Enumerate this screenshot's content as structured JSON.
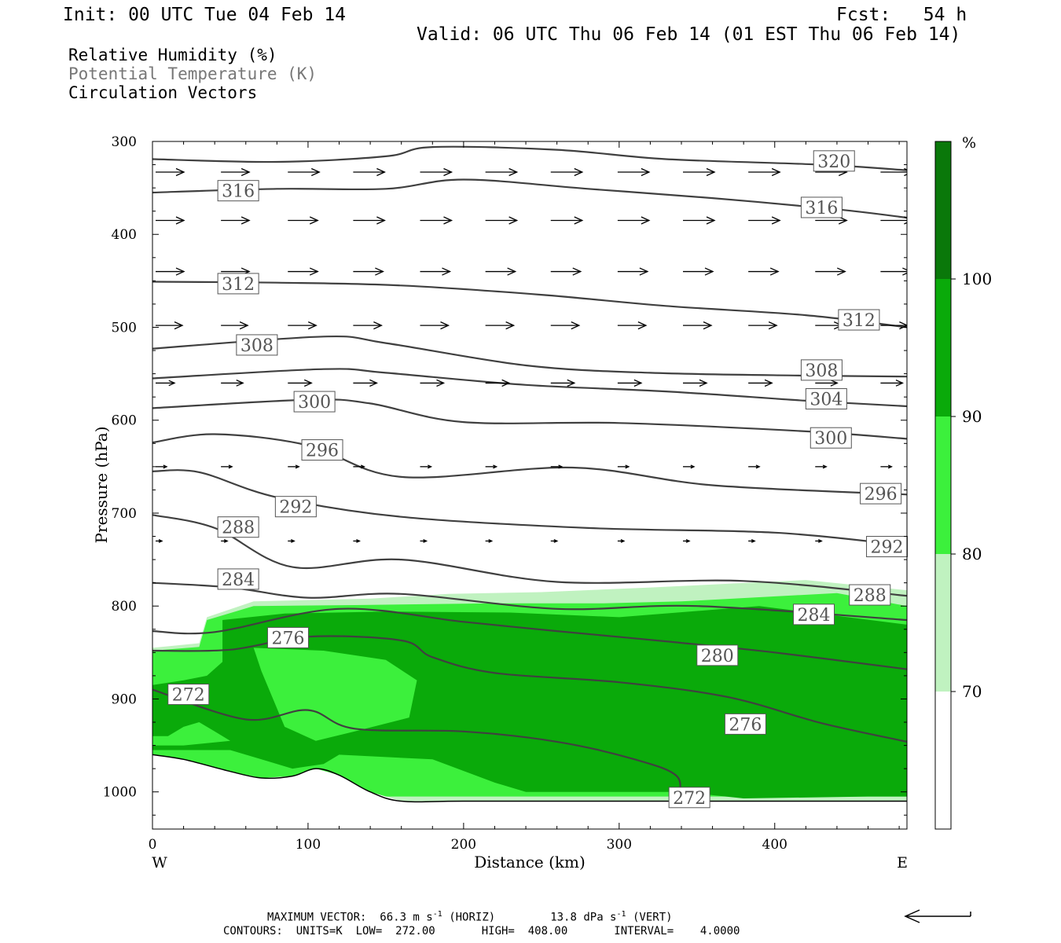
{
  "header": {
    "init": "Init: 00 UTC Tue 04 Feb 14",
    "fcst": "Fcst:   54 h",
    "valid": "Valid: 06 UTC Thu 06 Feb 14 (01 EST Thu 06 Feb 14)"
  },
  "fields": {
    "rh": "Relative Humidity (%)",
    "theta": "Potential Temperature (K)",
    "vectors": "Circulation Vectors"
  },
  "footer": {
    "max_vector_prefix": "MAXIMUM VECTOR:  66.3 m s",
    "max_vector_horiz": " (HORIZ)",
    "max_vector_vert_prefix": "13.8 dPa s",
    "max_vector_vert": " (VERT)",
    "superscript": "-1",
    "contours": "CONTOURS:  UNITS=K  LOW=  272.00       HIGH=  408.00       INTERVAL=    4.0000"
  },
  "colors": {
    "rh_70": "#c0f2c0",
    "rh_80": "#3cf03c",
    "rh_90": "#0aaa0a",
    "rh_100": "#0a780a",
    "contour": "#404040"
  },
  "chart_data": {
    "type": "cross-section",
    "xlabel": "Distance (km)",
    "ylabel": "Pressure (hPa)",
    "xlim": [
      0,
      485
    ],
    "ylim": [
      1040,
      300
    ],
    "x_ticks": [
      0,
      100,
      200,
      300,
      400
    ],
    "y_ticks": [
      300,
      400,
      500,
      600,
      700,
      800,
      900,
      1000
    ],
    "x_end_labels": {
      "left": "W",
      "right": "E"
    },
    "colorbar": {
      "unit": "%",
      "tick_labels": [
        "100",
        "90",
        "80",
        "70"
      ],
      "levels": [
        70,
        80,
        90,
        100
      ]
    },
    "theta_contours": [
      {
        "label": "320",
        "points": [
          [
            0,
            319
          ],
          [
            80,
            322
          ],
          [
            150,
            316
          ],
          [
            180,
            306
          ],
          [
            260,
            309
          ],
          [
            330,
            319
          ],
          [
            430,
            325
          ],
          [
            485,
            331
          ]
        ],
        "label_at": [
          425,
          321
        ]
      },
      {
        "label": "316",
        "points": [
          [
            0,
            355
          ],
          [
            80,
            351
          ],
          [
            150,
            351
          ],
          [
            200,
            341
          ],
          [
            280,
            351
          ],
          [
            360,
            361
          ],
          [
            440,
            373
          ],
          [
            485,
            382
          ]
        ],
        "label_at": [
          42,
          353
        ],
        "label2": "316",
        "label2_at": [
          417,
          371
        ]
      },
      {
        "label": "312",
        "points": [
          [
            0,
            451
          ],
          [
            80,
            452
          ],
          [
            160,
            455
          ],
          [
            250,
            465
          ],
          [
            330,
            477
          ],
          [
            420,
            487
          ],
          [
            485,
            500
          ]
        ],
        "label_at": [
          42,
          453
        ],
        "label2": "312",
        "label2_at": [
          441,
          492
        ]
      },
      {
        "label": "308",
        "points": [
          [
            0,
            523
          ],
          [
            110,
            510
          ],
          [
            150,
            517
          ],
          [
            240,
            541
          ],
          [
            320,
            549
          ],
          [
            420,
            552
          ],
          [
            485,
            553
          ]
        ],
        "label_at": [
          54,
          519
        ],
        "label2": "308",
        "label2_at": [
          417,
          546
        ]
      },
      {
        "label": "304",
        "points": [
          [
            0,
            555
          ],
          [
            110,
            545
          ],
          [
            150,
            549
          ],
          [
            240,
            562
          ],
          [
            330,
            569
          ],
          [
            420,
            579
          ],
          [
            485,
            585
          ]
        ],
        "label_at": [
          420,
          577
        ]
      },
      {
        "label": "300",
        "points": [
          [
            0,
            587
          ],
          [
            100,
            578
          ],
          [
            140,
            582
          ],
          [
            200,
            602
          ],
          [
            300,
            603
          ],
          [
            420,
            612
          ],
          [
            485,
            620
          ]
        ],
        "label_at": [
          91,
          580
        ],
        "label2": "300",
        "label2_at": [
          423,
          619
        ]
      },
      {
        "label": "296",
        "points": [
          [
            0,
            624
          ],
          [
            40,
            615
          ],
          [
            100,
            627
          ],
          [
            160,
            661
          ],
          [
            270,
            651
          ],
          [
            360,
            670
          ],
          [
            485,
            680
          ]
        ],
        "label_at": [
          96,
          632
        ],
        "label2": "296",
        "label2_at": [
          455,
          679
        ]
      },
      {
        "label": "292",
        "points": [
          [
            0,
            655
          ],
          [
            30,
            656
          ],
          [
            80,
            683
          ],
          [
            160,
            704
          ],
          [
            280,
            716
          ],
          [
            400,
            721
          ],
          [
            485,
            735
          ]
        ],
        "label_at": [
          79,
          693
        ],
        "label2": "292",
        "label2_at": [
          459,
          736
        ]
      },
      {
        "label": "288",
        "points": [
          [
            0,
            702
          ],
          [
            40,
            716
          ],
          [
            90,
            758
          ],
          [
            160,
            750
          ],
          [
            260,
            774
          ],
          [
            380,
            773
          ],
          [
            485,
            789
          ]
        ],
        "label_at": [
          42,
          715
        ],
        "label2": "288",
        "label2_at": [
          448,
          788
        ]
      },
      {
        "label": "284",
        "points": [
          [
            0,
            775
          ],
          [
            50,
            780
          ],
          [
            100,
            791
          ],
          [
            160,
            787
          ],
          [
            260,
            803
          ],
          [
            350,
            800
          ],
          [
            485,
            815
          ]
        ],
        "label_at": [
          42,
          771
        ],
        "label2": "284",
        "label2_at": [
          412,
          809
        ]
      },
      {
        "label": "280",
        "points": [
          [
            0,
            827
          ],
          [
            40,
            828
          ],
          [
            120,
            803
          ],
          [
            200,
            817
          ],
          [
            260,
            827
          ],
          [
            330,
            838
          ],
          [
            400,
            850
          ],
          [
            485,
            868
          ]
        ],
        "label_at": [
          350,
          853
        ]
      },
      {
        "label": "276",
        "points": [
          [
            0,
            848
          ],
          [
            50,
            847
          ],
          [
            100,
            833
          ],
          [
            160,
            837
          ],
          [
            180,
            855
          ],
          [
            220,
            872
          ],
          [
            300,
            882
          ],
          [
            370,
            898
          ],
          [
            430,
            926
          ],
          [
            485,
            946
          ]
        ],
        "label_at": [
          74,
          834
        ],
        "label2": "276",
        "label2_at": [
          368,
          927
        ]
      },
      {
        "label": "272",
        "points": [
          [
            0,
            890
          ],
          [
            60,
            922
          ],
          [
            100,
            912
          ],
          [
            130,
            932
          ],
          [
            200,
            935
          ],
          [
            260,
            946
          ],
          [
            310,
            965
          ],
          [
            337,
            983
          ],
          [
            338,
            1010
          ]
        ],
        "label_at": [
          10,
          895
        ],
        "label2": "272",
        "label2_at": [
          332,
          1006
        ]
      }
    ],
    "terrain": [
      [
        0,
        960
      ],
      [
        20,
        965
      ],
      [
        50,
        978
      ],
      [
        70,
        985
      ],
      [
        90,
        983
      ],
      [
        105,
        975
      ],
      [
        120,
        982
      ],
      [
        140,
        1000
      ],
      [
        160,
        1010
      ],
      [
        200,
        1010
      ],
      [
        300,
        1010
      ],
      [
        400,
        1010
      ],
      [
        485,
        1010
      ]
    ],
    "rh_regions": [
      {
        "level": 70,
        "points": [
          [
            0,
            845
          ],
          [
            30,
            840
          ],
          [
            35,
            812
          ],
          [
            65,
            795
          ],
          [
            140,
            792
          ],
          [
            190,
            787
          ],
          [
            250,
            785
          ],
          [
            320,
            780
          ],
          [
            420,
            772
          ],
          [
            485,
            783
          ],
          [
            485,
            1010
          ],
          [
            0,
            1010
          ]
        ]
      },
      {
        "level": 80,
        "points": [
          [
            0,
            848
          ],
          [
            30,
            844
          ],
          [
            35,
            815
          ],
          [
            65,
            800
          ],
          [
            130,
            799
          ],
          [
            220,
            797
          ],
          [
            290,
            797
          ],
          [
            340,
            795
          ],
          [
            440,
            786
          ],
          [
            485,
            800
          ],
          [
            485,
            1005
          ],
          [
            0,
            1005
          ]
        ]
      },
      {
        "level": 90,
        "points": [
          [
            0,
            885
          ],
          [
            20,
            880
          ],
          [
            35,
            875
          ],
          [
            45,
            860
          ],
          [
            45,
            815
          ],
          [
            85,
            808
          ],
          [
            150,
            806
          ],
          [
            230,
            807
          ],
          [
            300,
            812
          ],
          [
            390,
            800
          ],
          [
            485,
            820
          ],
          [
            485,
            1005
          ],
          [
            460,
            1005
          ],
          [
            380,
            1007
          ],
          [
            340,
            1000
          ],
          [
            300,
            1000
          ],
          [
            240,
            1000
          ],
          [
            220,
            990
          ],
          [
            180,
            965
          ],
          [
            120,
            960
          ],
          [
            110,
            970
          ],
          [
            90,
            975
          ],
          [
            70,
            965
          ],
          [
            50,
            955
          ],
          [
            20,
            955
          ],
          [
            0,
            955
          ]
        ]
      },
      {
        "level": 80,
        "points": [
          [
            0,
            940
          ],
          [
            10,
            940
          ],
          [
            20,
            930
          ],
          [
            30,
            925
          ],
          [
            40,
            935
          ],
          [
            50,
            945
          ],
          [
            20,
            950
          ],
          [
            0,
            950
          ]
        ]
      }
    ],
    "rh_hole": [
      [
        65,
        845
      ],
      [
        110,
        848
      ],
      [
        150,
        858
      ],
      [
        170,
        880
      ],
      [
        165,
        920
      ],
      [
        130,
        935
      ],
      [
        105,
        945
      ],
      [
        85,
        930
      ],
      [
        70,
        870
      ]
    ],
    "circulation_vectors": [
      {
        "y": 333,
        "x": [
          0,
          42,
          85,
          127,
          170,
          212,
          254,
          297,
          339,
          381,
          424,
          466
        ],
        "len": [
          36,
          36,
          40,
          40,
          40,
          40,
          40,
          40,
          40,
          40,
          40,
          40
        ]
      },
      {
        "y": 385,
        "x": [
          0,
          42,
          85,
          127,
          170,
          212,
          254,
          297,
          339,
          381,
          424,
          466
        ],
        "len": [
          36,
          36,
          38,
          40,
          40,
          40,
          40,
          40,
          40,
          40,
          40,
          40
        ]
      },
      {
        "y": 440,
        "x": [
          0,
          42,
          85,
          127,
          170,
          212,
          254,
          297,
          339,
          381,
          424,
          466
        ],
        "len": [
          36,
          36,
          38,
          38,
          38,
          38,
          38,
          38,
          38,
          38,
          38,
          38
        ]
      },
      {
        "y": 498,
        "x": [
          0,
          42,
          85,
          127,
          170,
          212,
          254,
          297,
          339,
          381,
          424,
          466
        ],
        "len": [
          34,
          34,
          36,
          36,
          36,
          36,
          36,
          36,
          36,
          36,
          34,
          34
        ]
      },
      {
        "y": 560,
        "x": [
          0,
          42,
          85,
          127,
          170,
          212,
          254,
          297,
          339,
          381,
          424,
          466
        ],
        "len": [
          24,
          28,
          30,
          30,
          30,
          30,
          30,
          30,
          30,
          30,
          28,
          28
        ]
      },
      {
        "y": 650,
        "x": [
          0,
          42,
          85,
          127,
          170,
          212,
          254,
          297,
          339,
          381,
          424,
          466
        ],
        "len": [
          14,
          14,
          14,
          14,
          14,
          14,
          14,
          14,
          14,
          14,
          14,
          14
        ]
      },
      {
        "y": 730,
        "x": [
          0,
          42,
          85,
          127,
          170,
          212,
          254,
          297,
          339,
          381,
          424,
          466
        ],
        "len": [
          8,
          8,
          8,
          8,
          8,
          8,
          8,
          8,
          8,
          8,
          8,
          8
        ]
      }
    ]
  }
}
